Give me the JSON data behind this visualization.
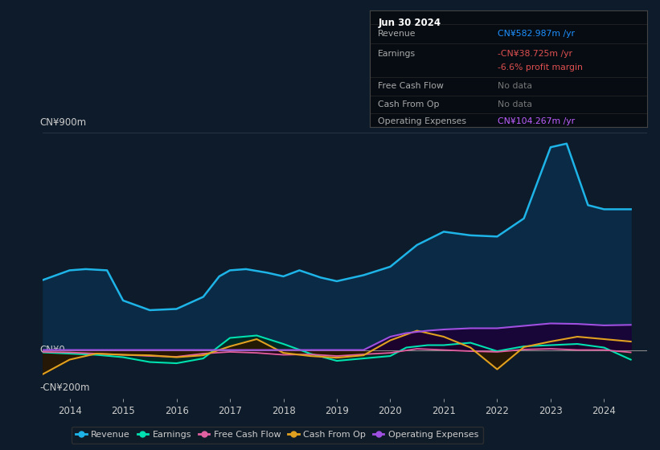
{
  "bg_color": "#0d1b2a",
  "plot_bg_color": "#0d1b2a",
  "ylim": [
    -200,
    900
  ],
  "xlim": [
    2013.5,
    2024.8
  ],
  "xticks": [
    2014,
    2015,
    2016,
    2017,
    2018,
    2019,
    2020,
    2021,
    2022,
    2023,
    2024
  ],
  "ylabel_top": "CN¥900m",
  "ylabel_zero": "CN¥0",
  "ylabel_bottom": "-CN¥200m",
  "info_box": {
    "title": "Jun 30 2024",
    "rows": [
      {
        "label": "Revenue",
        "value": "CN¥582.987m /yr",
        "value_color": "#1e90ff"
      },
      {
        "label": "Earnings",
        "value": "-CN¥38.725m /yr",
        "value_color": "#e05050"
      },
      {
        "label": "",
        "value": "-6.6% profit margin",
        "value_color": "#e05050"
      },
      {
        "label": "Free Cash Flow",
        "value": "No data",
        "value_color": "#777777"
      },
      {
        "label": "Cash From Op",
        "value": "No data",
        "value_color": "#777777"
      },
      {
        "label": "Operating Expenses",
        "value": "CN¥104.267m /yr",
        "value_color": "#bf5fff"
      }
    ]
  },
  "series": {
    "revenue": {
      "color": "#1eb4e8",
      "fill_color": "#0a2a45",
      "label": "Revenue",
      "x": [
        2013.5,
        2014.0,
        2014.3,
        2014.7,
        2015.0,
        2015.5,
        2016.0,
        2016.5,
        2016.8,
        2017.0,
        2017.3,
        2017.7,
        2018.0,
        2018.3,
        2018.7,
        2019.0,
        2019.5,
        2020.0,
        2020.5,
        2021.0,
        2021.5,
        2022.0,
        2022.5,
        2023.0,
        2023.3,
        2023.7,
        2024.0,
        2024.5
      ],
      "y": [
        290,
        330,
        335,
        330,
        205,
        165,
        170,
        220,
        305,
        330,
        335,
        320,
        305,
        330,
        300,
        285,
        310,
        345,
        435,
        490,
        475,
        470,
        545,
        840,
        855,
        600,
        583,
        583
      ]
    },
    "earnings": {
      "color": "#00e0b0",
      "fill_color": "#002a22",
      "label": "Earnings",
      "x": [
        2013.5,
        2014.0,
        2014.5,
        2015.0,
        2015.5,
        2016.0,
        2016.5,
        2017.0,
        2017.5,
        2018.0,
        2018.5,
        2019.0,
        2019.5,
        2020.0,
        2020.3,
        2020.7,
        2021.0,
        2021.5,
        2022.0,
        2022.5,
        2023.0,
        2023.5,
        2024.0,
        2024.5
      ],
      "y": [
        -10,
        -15,
        -20,
        -30,
        -50,
        -55,
        -35,
        50,
        60,
        25,
        -15,
        -45,
        -35,
        -25,
        10,
        20,
        20,
        30,
        -5,
        15,
        20,
        25,
        10,
        -40
      ]
    },
    "free_cash_flow": {
      "color": "#e060a0",
      "fill_color": "#2a0018",
      "label": "Free Cash Flow",
      "x": [
        2013.5,
        2014.0,
        2014.5,
        2015.0,
        2015.5,
        2016.0,
        2016.5,
        2017.0,
        2017.5,
        2018.0,
        2018.5,
        2019.0,
        2019.5,
        2020.0,
        2020.5,
        2021.0,
        2021.5,
        2022.0,
        2022.5,
        2023.0,
        2023.5,
        2024.0,
        2024.5
      ],
      "y": [
        -8,
        -10,
        -15,
        -20,
        -25,
        -28,
        -15,
        -8,
        -12,
        -20,
        -18,
        -25,
        -18,
        -12,
        5,
        0,
        -5,
        -8,
        2,
        5,
        0,
        0,
        -10
      ]
    },
    "cash_from_op": {
      "color": "#e0a020",
      "fill_color": "#2a1800",
      "label": "Cash From Op",
      "x": [
        2013.5,
        2014.0,
        2014.5,
        2015.0,
        2015.5,
        2016.0,
        2016.5,
        2017.0,
        2017.5,
        2018.0,
        2018.5,
        2019.0,
        2019.5,
        2020.0,
        2020.5,
        2021.0,
        2021.5,
        2022.0,
        2022.5,
        2023.0,
        2023.5,
        2024.0,
        2024.5
      ],
      "y": [
        -100,
        -40,
        -15,
        -20,
        -22,
        -30,
        -22,
        15,
        45,
        -12,
        -25,
        -32,
        -22,
        40,
        80,
        55,
        10,
        -80,
        12,
        35,
        55,
        45,
        35
      ]
    },
    "operating_expenses": {
      "color": "#a050e0",
      "fill_color": "#1a0035",
      "label": "Operating Expenses",
      "x": [
        2013.5,
        2014.0,
        2014.5,
        2015.0,
        2015.5,
        2016.0,
        2016.5,
        2017.0,
        2017.5,
        2018.0,
        2018.5,
        2019.0,
        2019.5,
        2020.0,
        2020.3,
        2020.7,
        2021.0,
        2021.5,
        2022.0,
        2022.5,
        2023.0,
        2023.5,
        2024.0,
        2024.5
      ],
      "y": [
        0,
        0,
        0,
        0,
        0,
        0,
        0,
        0,
        0,
        0,
        0,
        0,
        0,
        55,
        70,
        80,
        85,
        90,
        90,
        100,
        110,
        108,
        102,
        104
      ]
    }
  },
  "legend": [
    {
      "label": "Revenue",
      "color": "#1eb4e8"
    },
    {
      "label": "Earnings",
      "color": "#00e0b0"
    },
    {
      "label": "Free Cash Flow",
      "color": "#e060a0"
    },
    {
      "label": "Cash From Op",
      "color": "#e0a020"
    },
    {
      "label": "Operating Expenses",
      "color": "#a050e0"
    }
  ],
  "text_color": "#cccccc",
  "grid_color": "#2a3a4a"
}
